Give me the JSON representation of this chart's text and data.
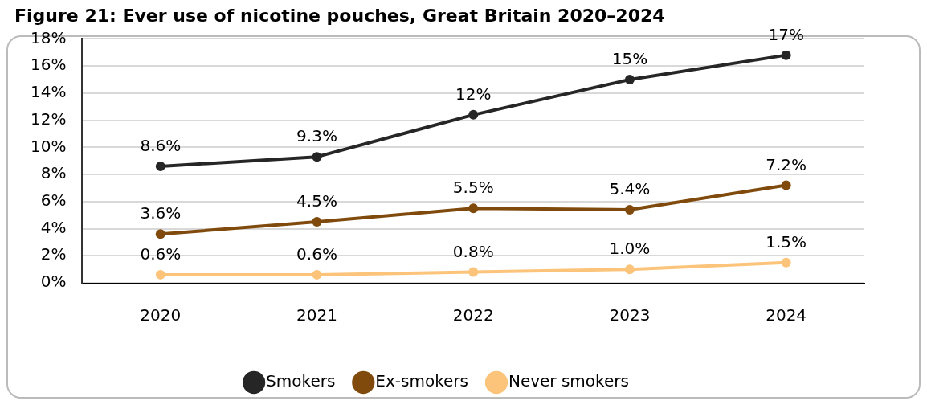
{
  "chart_data": {
    "type": "line",
    "title": "Figure 21: Ever use of nicotine pouches, Great Britain 2020–2024",
    "categories": [
      "2020",
      "2021",
      "2022",
      "2023",
      "2024"
    ],
    "series": [
      {
        "name": "Smokers",
        "color": "#262626",
        "values": [
          8.6,
          9.3,
          12.4,
          15.0,
          16.8
        ],
        "value_labels": [
          "8.6%",
          "9.3%",
          "12%",
          "15%",
          "17%"
        ]
      },
      {
        "name": "Ex-smokers",
        "color": "#7f4a0c",
        "values": [
          3.6,
          4.5,
          5.5,
          5.4,
          7.2
        ],
        "value_labels": [
          "3.6%",
          "4.5%",
          "5.5%",
          "5.4%",
          "7.2%"
        ]
      },
      {
        "name": "Never smokers",
        "color": "#fbc47a",
        "values": [
          0.6,
          0.6,
          0.8,
          1.0,
          1.5
        ],
        "value_labels": [
          "0.6%",
          "0.6%",
          "0.8%",
          "1.0%",
          "1.5%"
        ]
      }
    ],
    "ylim": [
      0,
      18
    ],
    "yticks": [
      {
        "value": 0,
        "label": "0%"
      },
      {
        "value": 2,
        "label": "2%"
      },
      {
        "value": 4,
        "label": "4%"
      },
      {
        "value": 6,
        "label": "6%"
      },
      {
        "value": 8,
        "label": "8%"
      },
      {
        "value": 10,
        "label": "10%"
      },
      {
        "value": 12,
        "label": "12%"
      },
      {
        "value": 14,
        "label": "14%"
      },
      {
        "value": 16,
        "label": "16%"
      },
      {
        "value": 18,
        "label": "18%"
      }
    ],
    "grid": "y",
    "legend": "bottom",
    "marker": "circle",
    "line_style": "solid"
  }
}
